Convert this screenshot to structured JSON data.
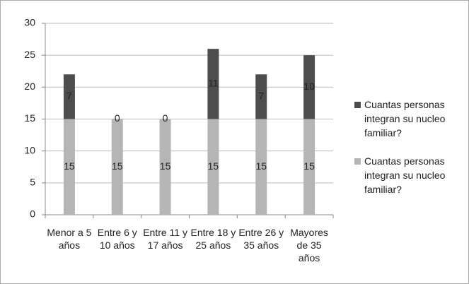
{
  "chart_data": {
    "type": "bar",
    "stacked": true,
    "categories": [
      "Menor a 5 años",
      "Entre 6 y 10 años",
      "Entre 11 y 17 años",
      "Entre 18 y 25 años",
      "Entre 26 y 35 años",
      "Mayores de 35 años"
    ],
    "series": [
      {
        "name": "Cuantas personas integran su nucleo familiar?",
        "color": "#b5b5b5",
        "values": [
          15,
          15,
          15,
          15,
          15,
          15
        ]
      },
      {
        "name": "Cuantas personas integran su nucleo familiar?",
        "color": "#4d4d4d",
        "values": [
          7,
          0,
          0,
          11,
          7,
          10
        ]
      }
    ],
    "ylim": [
      0,
      30
    ],
    "yticks": [
      0,
      5,
      10,
      15,
      20,
      25,
      30
    ],
    "grid": true,
    "legend": "right"
  }
}
